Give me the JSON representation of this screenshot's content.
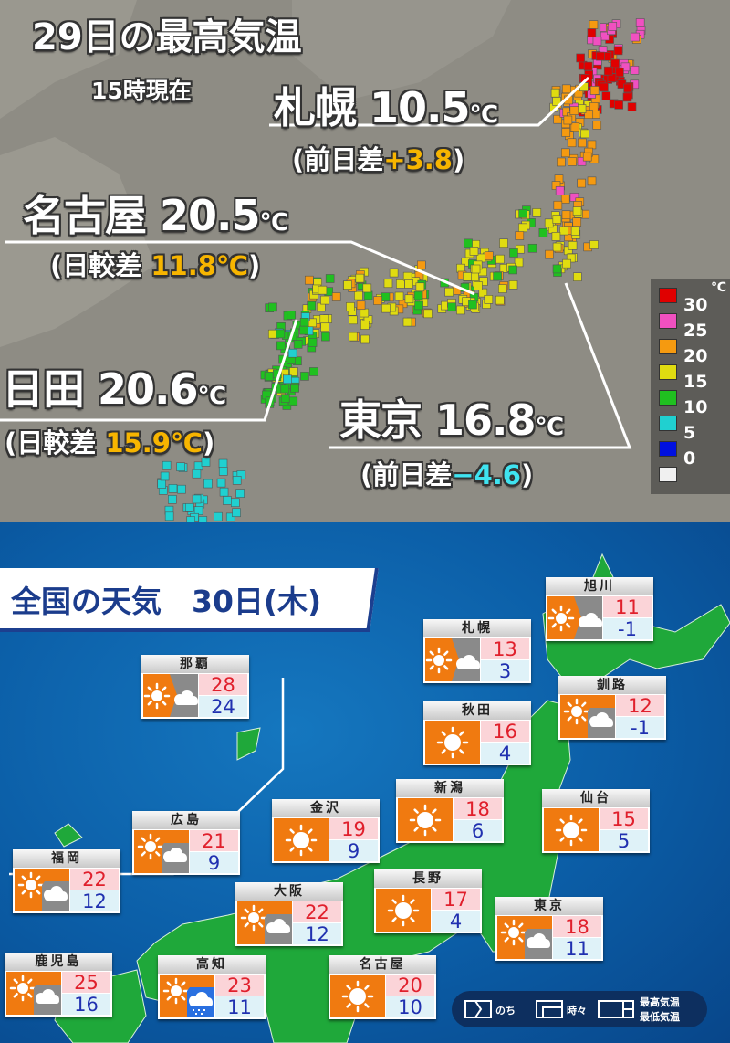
{
  "top": {
    "title": "29日の最高気温",
    "subtitle": "15時現在",
    "callouts": [
      {
        "city": "札幌",
        "temp": "10.5",
        "unit": "℃",
        "diff_label": "(前日差",
        "diff": "+3.8",
        "close": ")",
        "diff_type": "plus"
      },
      {
        "city": "名古屋",
        "temp": "20.5",
        "unit": "℃",
        "diff_label": "(日較差 ",
        "diff": "11.8℃",
        "close": ")",
        "diff_type": "plus"
      },
      {
        "city": "日田",
        "temp": "20.6",
        "unit": "℃",
        "diff_label": "(日較差 ",
        "diff": "15.9℃",
        "close": ")",
        "diff_type": "plus"
      },
      {
        "city": "東京",
        "temp": "16.8",
        "unit": "℃",
        "diff_label": "(前日差",
        "diff": "−4.6",
        "close": ")",
        "diff_type": "minus"
      }
    ],
    "legend": {
      "unit": "℃",
      "labels": [
        "30",
        "25",
        "20",
        "15",
        "10",
        "5",
        "0"
      ],
      "colors": [
        "#e00000",
        "#f050c0",
        "#f59a10",
        "#e0dc10",
        "#20c020",
        "#20d0d0",
        "#0010e0",
        "#f0f0f0"
      ]
    }
  },
  "bottom": {
    "title": "全国の天気　30日(木)",
    "cities": [
      {
        "name": "旭川",
        "weather": "sun-then-cloud",
        "high": "11",
        "low": "-1"
      },
      {
        "name": "札幌",
        "weather": "sun-then-cloud",
        "high": "13",
        "low": "3"
      },
      {
        "name": "那覇",
        "weather": "sun-then-cloud",
        "high": "28",
        "low": "24"
      },
      {
        "name": "釧路",
        "weather": "sun-sometimes-cloud",
        "high": "12",
        "low": "-1"
      },
      {
        "name": "秋田",
        "weather": "sun",
        "high": "16",
        "low": "4"
      },
      {
        "name": "新潟",
        "weather": "sun",
        "high": "18",
        "low": "6"
      },
      {
        "name": "仙台",
        "weather": "sun",
        "high": "15",
        "low": "5"
      },
      {
        "name": "金沢",
        "weather": "sun",
        "high": "19",
        "low": "9"
      },
      {
        "name": "広島",
        "weather": "sun-sometimes-cloud",
        "high": "21",
        "low": "9"
      },
      {
        "name": "福岡",
        "weather": "sun-sometimes-cloud",
        "high": "22",
        "low": "12"
      },
      {
        "name": "長野",
        "weather": "sun",
        "high": "17",
        "low": "4"
      },
      {
        "name": "大阪",
        "weather": "sun-sometimes-cloud",
        "high": "22",
        "low": "12"
      },
      {
        "name": "東京",
        "weather": "sun-sometimes-cloud",
        "high": "18",
        "low": "11"
      },
      {
        "name": "鹿児島",
        "weather": "sun-sometimes-cloud",
        "high": "25",
        "low": "16"
      },
      {
        "name": "高知",
        "weather": "sun-sometimes-rain",
        "high": "23",
        "low": "11"
      },
      {
        "name": "名古屋",
        "weather": "sun",
        "high": "20",
        "low": "10"
      }
    ],
    "key": {
      "then": "のち",
      "sometimes": "時々",
      "high": "最高気温",
      "low": "最低気温"
    },
    "colors": {
      "sun": "#f07a10",
      "cloud": "#8a8a8a",
      "rain": "#2a70e0",
      "land": "#1fa83a"
    }
  }
}
